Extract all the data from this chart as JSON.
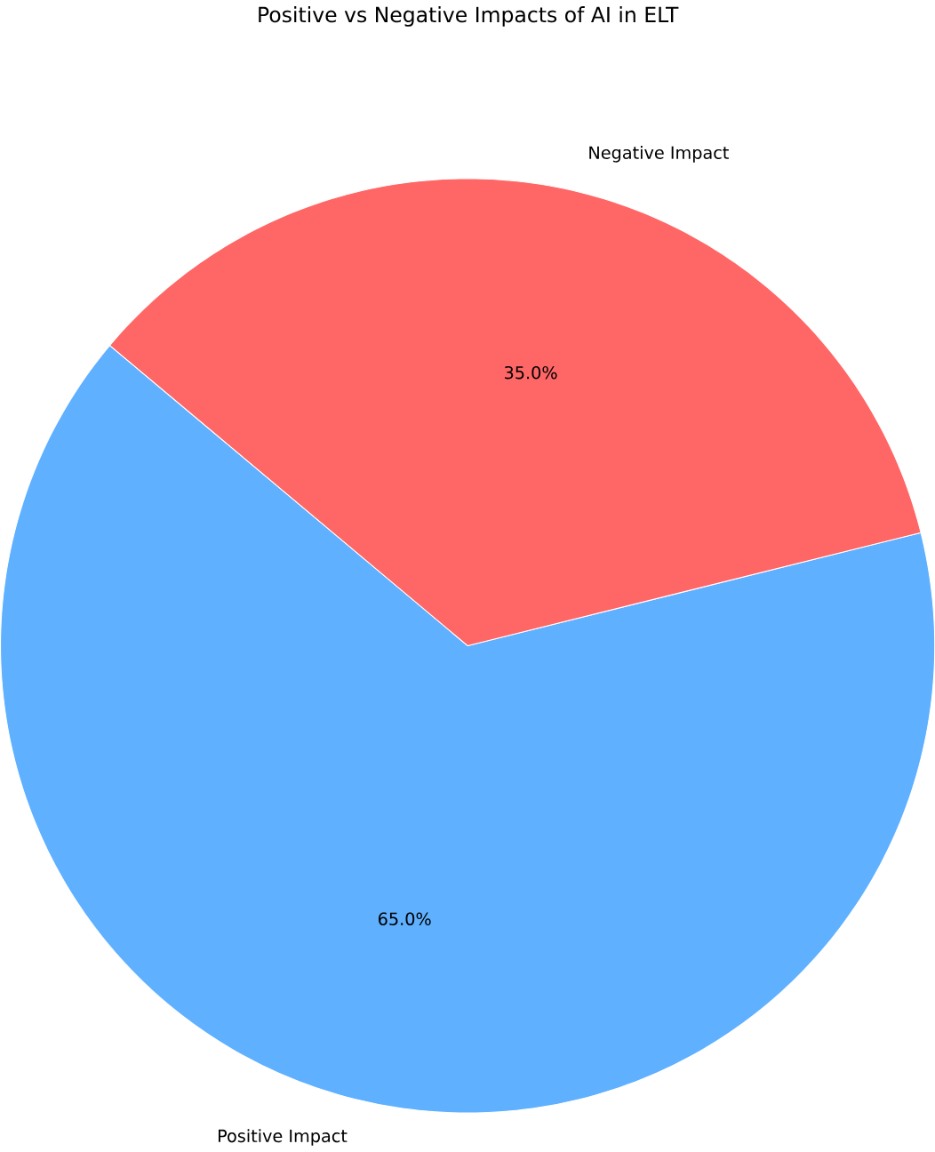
{
  "chart_data": {
    "type": "pie",
    "title": "Positive vs Negative Impacts of AI in ELT",
    "categories": [
      "Positive Impact",
      "Negative Impact"
    ],
    "values": [
      65,
      35
    ],
    "colors": [
      "#5fb0ff",
      "#ff6666"
    ],
    "value_labels": [
      "65.0%",
      "35.0%"
    ]
  }
}
